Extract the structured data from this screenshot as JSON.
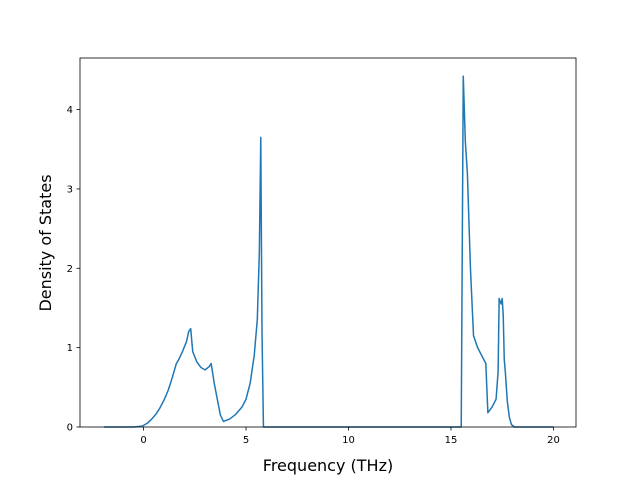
{
  "chart_data": {
    "type": "line",
    "title": "",
    "xlabel": "Frequency (THz)",
    "ylabel": "Density of States",
    "xlim": [
      -3.1,
      21.1
    ],
    "ylim": [
      0,
      4.65
    ],
    "x_ticks": [
      0,
      5,
      10,
      15,
      20
    ],
    "y_ticks": [
      0,
      1,
      2,
      3,
      4
    ],
    "grid": false,
    "legend": "none",
    "line_color": "#1f77b4",
    "series": [
      {
        "x": [
          -1.9,
          -1.0,
          -0.5,
          -0.1,
          0.0,
          0.2,
          0.4,
          0.6,
          0.8,
          1.0,
          1.2,
          1.4,
          1.6,
          1.7,
          1.9,
          2.1,
          2.2,
          2.3,
          2.4,
          2.6,
          2.8,
          3.0,
          3.2,
          3.3,
          3.45,
          3.6,
          3.75,
          3.9,
          4.2,
          4.5,
          4.8,
          5.0,
          5.2,
          5.4,
          5.55,
          5.65,
          5.72,
          5.78,
          5.85,
          5.9,
          6.5,
          10.0,
          15.0,
          15.5,
          15.6,
          15.7,
          15.8,
          15.95,
          16.1,
          16.3,
          16.5,
          16.7,
          16.8,
          17.0,
          17.2,
          17.3,
          17.35,
          17.45,
          17.5,
          17.55,
          17.6,
          17.65,
          17.75,
          17.85,
          17.95,
          18.1,
          18.3,
          19.0,
          19.95
        ],
        "y": [
          0,
          0,
          0,
          0.01,
          0.02,
          0.05,
          0.1,
          0.16,
          0.24,
          0.34,
          0.46,
          0.62,
          0.8,
          0.84,
          0.95,
          1.08,
          1.2,
          1.24,
          0.95,
          0.82,
          0.75,
          0.72,
          0.76,
          0.8,
          0.55,
          0.35,
          0.15,
          0.07,
          0.1,
          0.16,
          0.25,
          0.35,
          0.55,
          0.9,
          1.35,
          2.2,
          3.65,
          1.2,
          0,
          0,
          0,
          0,
          0,
          0,
          4.42,
          3.6,
          3.2,
          2.0,
          1.15,
          1.0,
          0.9,
          0.8,
          0.18,
          0.25,
          0.35,
          0.7,
          1.62,
          1.55,
          1.62,
          1.4,
          0.85,
          0.7,
          0.32,
          0.12,
          0.03,
          0,
          0,
          0,
          0
        ]
      }
    ]
  }
}
